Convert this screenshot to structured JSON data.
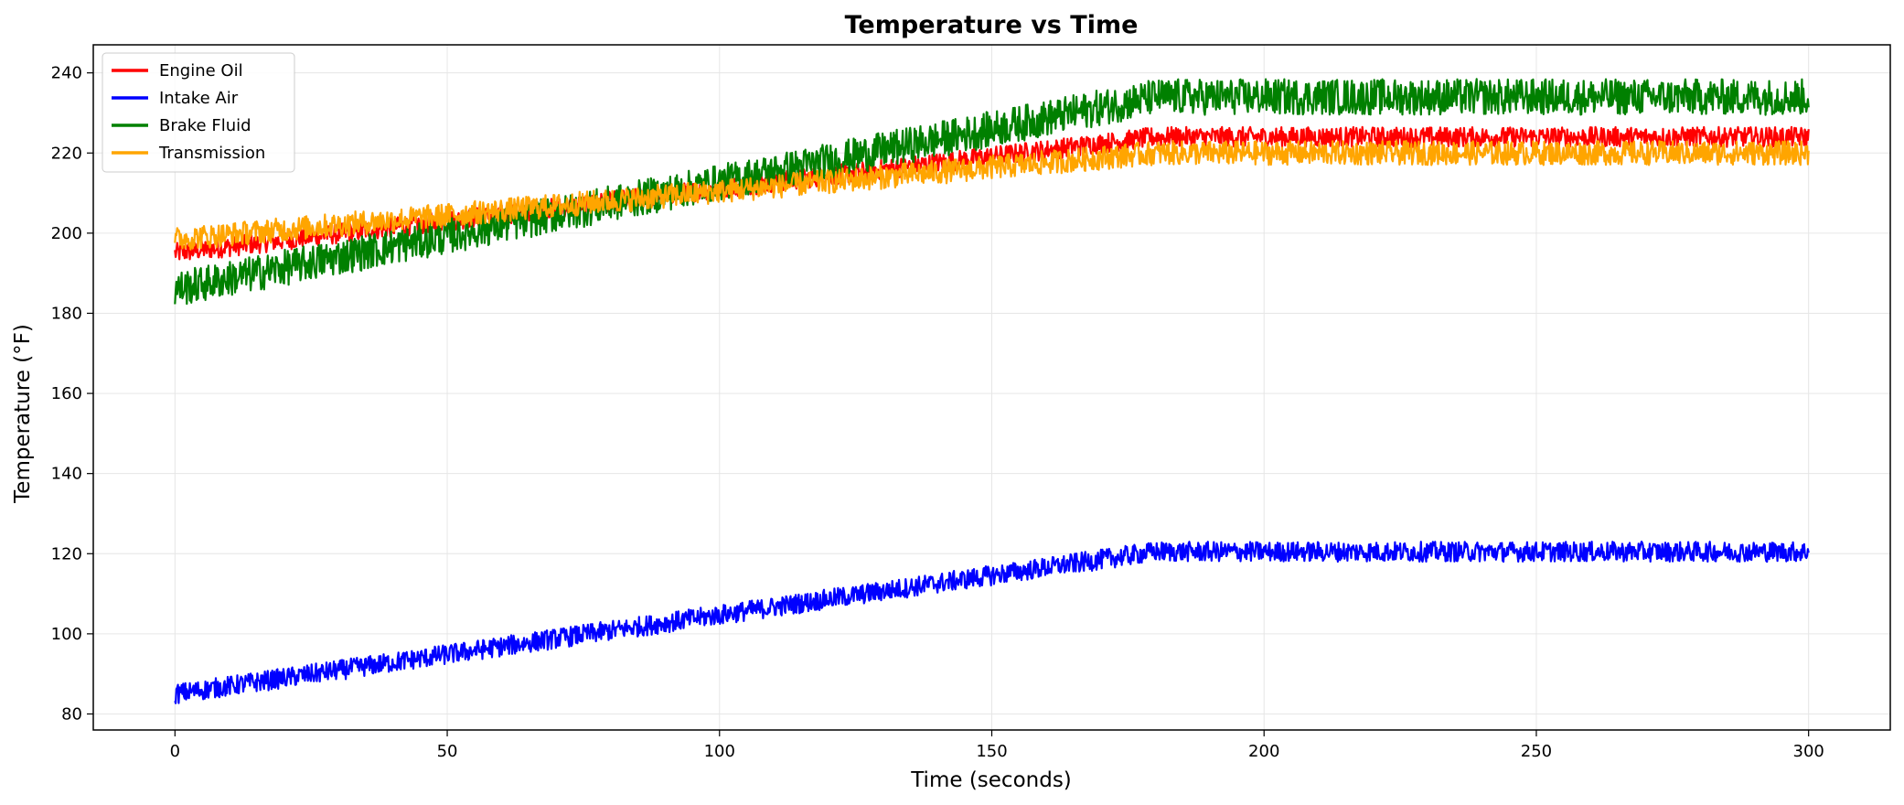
{
  "chart_data": {
    "type": "line",
    "title": "Temperature vs Time",
    "xlabel": "Time (seconds)",
    "ylabel": "Temperature (°F)",
    "xlim": [
      -15,
      315
    ],
    "ylim": [
      76,
      247
    ],
    "xticks": [
      0,
      50,
      100,
      150,
      200,
      250,
      300
    ],
    "yticks": [
      80,
      100,
      120,
      140,
      160,
      180,
      200,
      220,
      240
    ],
    "grid": true,
    "legend_position": "top-left",
    "series": [
      {
        "name": "Engine Oil",
        "color": "#ff0000",
        "noise": 2.5,
        "x": [
          0,
          180,
          300
        ],
        "y": [
          195,
          224,
          224
        ]
      },
      {
        "name": "Intake Air",
        "color": "#0000ff",
        "noise": 2.5,
        "x": [
          0,
          180,
          300
        ],
        "y": [
          85,
          120.5,
          120.5
        ]
      },
      {
        "name": "Brake Fluid",
        "color": "#008000",
        "noise": 4.5,
        "x": [
          0,
          180,
          300
        ],
        "y": [
          186,
          234,
          234
        ]
      },
      {
        "name": "Transmission",
        "color": "#ffa500",
        "noise": 3,
        "x": [
          0,
          180,
          300
        ],
        "y": [
          198.5,
          220,
          220
        ]
      }
    ]
  }
}
